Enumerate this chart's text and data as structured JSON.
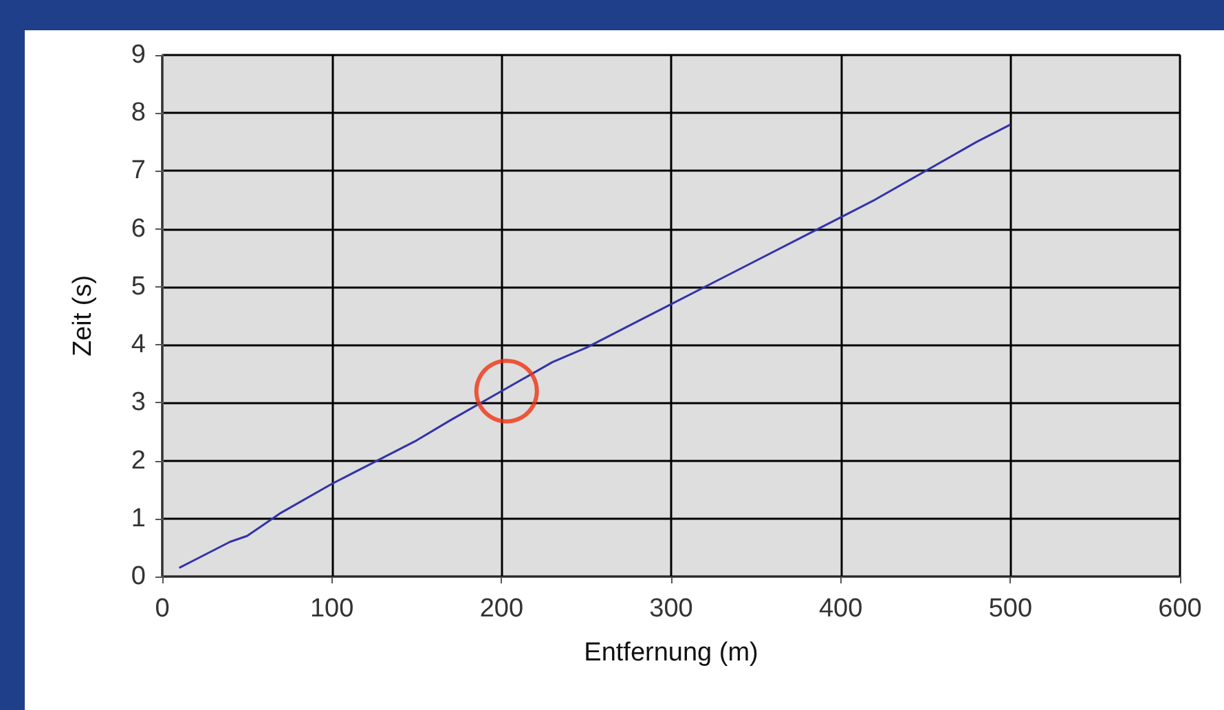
{
  "chart_data": {
    "type": "line",
    "xlabel": "Entfernung (m)",
    "ylabel": "Zeit (s)",
    "xlim": [
      0,
      600
    ],
    "xticks": [
      0,
      100,
      200,
      300,
      400,
      500,
      600
    ],
    "ylim": [
      0,
      9
    ],
    "yticks": [
      0,
      1,
      2,
      3,
      4,
      5,
      6,
      7,
      8,
      9
    ],
    "grid": true,
    "marker": "none",
    "line_style": "solid",
    "series": [
      {
        "color": "#3333aa",
        "x": [
          10,
          20,
          40,
          50,
          70,
          100,
          130,
          150,
          170,
          200,
          230,
          250,
          280,
          300,
          330,
          350,
          380,
          400,
          420,
          450,
          480,
          500
        ],
        "values": [
          0.15,
          0.3,
          0.6,
          0.7,
          1.1,
          1.6,
          2.05,
          2.35,
          2.7,
          3.2,
          3.7,
          3.95,
          4.4,
          4.7,
          5.15,
          5.45,
          5.9,
          6.2,
          6.5,
          7.0,
          7.5,
          7.8
        ]
      },
      {
        "type": "scatter",
        "marker": "circle",
        "color": "#ee3311",
        "x": [
          203
        ],
        "values": [
          3.2
        ]
      }
    ]
  }
}
